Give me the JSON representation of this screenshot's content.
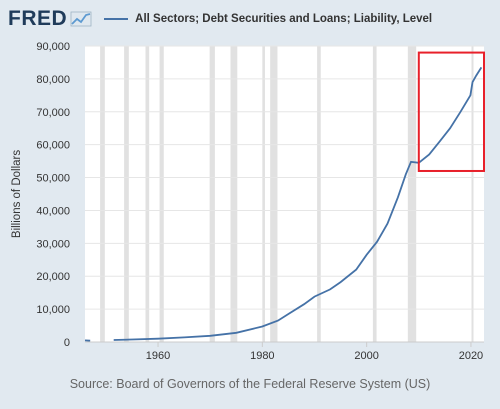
{
  "header": {
    "logo": "FRED",
    "logo_icon": "fred-chart-line-icon"
  },
  "chart_data": {
    "type": "line",
    "title": "",
    "xlabel": "",
    "ylabel": "Billions of Dollars",
    "xlim": [
      1946,
      2022.5
    ],
    "ylim": [
      0,
      90000
    ],
    "yticks": [
      0,
      10000,
      20000,
      30000,
      40000,
      50000,
      60000,
      70000,
      80000,
      90000
    ],
    "ytick_labels": [
      "0",
      "10,000",
      "20,000",
      "30,000",
      "40,000",
      "50,000",
      "60,000",
      "70,000",
      "80,000",
      "90,000"
    ],
    "xticks": [
      1960,
      1980,
      2000,
      2020
    ],
    "xtick_labels": [
      "1960",
      "1980",
      "2000",
      "2020"
    ],
    "grid": true,
    "legend": "top",
    "recessions": [
      [
        1948.9,
        1949.8
      ],
      [
        1953.5,
        1954.4
      ],
      [
        1957.6,
        1958.3
      ],
      [
        1960.3,
        1961.1
      ],
      [
        1969.9,
        1970.9
      ],
      [
        1973.9,
        1975.2
      ],
      [
        1980.0,
        1980.5
      ],
      [
        1981.5,
        1982.9
      ],
      [
        1990.5,
        1991.2
      ],
      [
        2001.2,
        2001.9
      ],
      [
        2007.9,
        2009.5
      ],
      [
        2020.1,
        2020.4
      ]
    ],
    "highlight_box": {
      "x": [
        2010,
        2022.5
      ],
      "y": [
        52000,
        88000
      ],
      "color": "#e8202a"
    },
    "series": [
      {
        "name": "All Sectors; Debt Securities and Loans; Liability, Level",
        "color": "#4572a7",
        "points": [
          [
            1946,
            500
          ],
          [
            1947,
            400
          ],
          [
            1951.5,
            600
          ],
          [
            1955,
            750
          ],
          [
            1960,
            1000
          ],
          [
            1965,
            1400
          ],
          [
            1970,
            1900
          ],
          [
            1975,
            2800
          ],
          [
            1980,
            4700
          ],
          [
            1983,
            6500
          ],
          [
            1985,
            8500
          ],
          [
            1988,
            11500
          ],
          [
            1990,
            13800
          ],
          [
            1993,
            16000
          ],
          [
            1995,
            18200
          ],
          [
            1998,
            22000
          ],
          [
            2000,
            26500
          ],
          [
            2002,
            30500
          ],
          [
            2004,
            36000
          ],
          [
            2006,
            44000
          ],
          [
            2007.5,
            51000
          ],
          [
            2008.5,
            54800
          ],
          [
            2010,
            54500
          ],
          [
            2012,
            57000
          ],
          [
            2014,
            61000
          ],
          [
            2016,
            65000
          ],
          [
            2018,
            70000
          ],
          [
            2019.9,
            75000
          ],
          [
            2020.3,
            79000
          ],
          [
            2021,
            81000
          ],
          [
            2022,
            83500
          ]
        ]
      }
    ]
  },
  "source": "Source: Board of Governors of the Federal Reserve System (US)"
}
